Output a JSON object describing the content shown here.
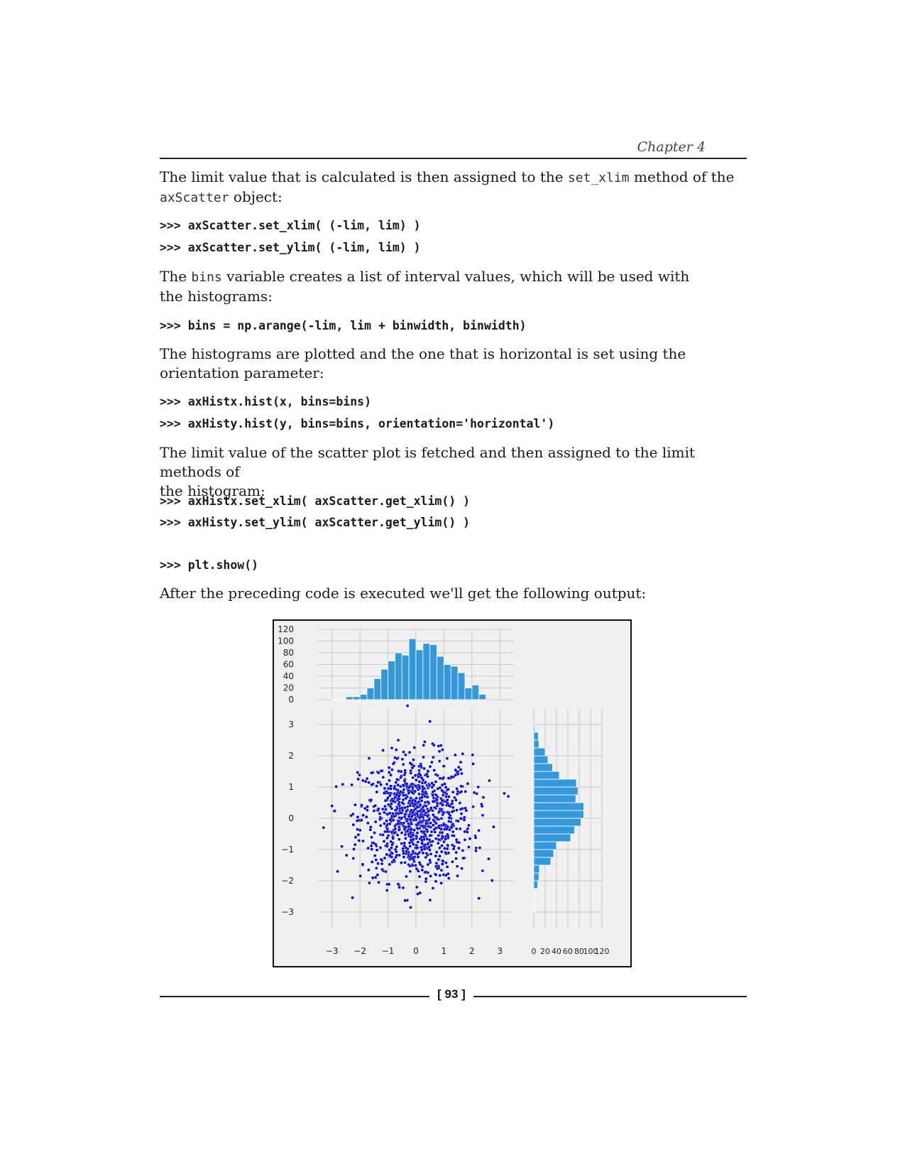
{
  "header": {
    "chapter": "Chapter 4"
  },
  "body": {
    "p1": {
      "a": "The limit value that is calculated is then assigned to the ",
      "code1": "set_xlim",
      "b": " method of the",
      "code2": "axScatter",
      "c": " object:"
    },
    "code1": [
      ">>> axScatter.set_xlim( (-lim, lim) )",
      ">>> axScatter.set_ylim( (-lim, lim) )"
    ],
    "p2": {
      "a": "The ",
      "code1": "bins",
      "b": " variable creates a list of interval values, which will be used with",
      "c": "the histograms:"
    },
    "code2": [
      ">>> bins = np.arange(-lim, lim + binwidth, binwidth)"
    ],
    "p3": {
      "a": "The histograms are plotted and the one that is horizontal is set using the",
      "b": "orientation parameter:"
    },
    "code3": [
      ">>> axHistx.hist(x, bins=bins)",
      ">>> axHisty.hist(y, bins=bins, orientation='horizontal')"
    ],
    "p4": {
      "a": "The limit value of the scatter plot is fetched and then assigned to the limit methods of",
      "b": "the histogram:"
    },
    "code4": [
      ">>> axHistx.set_xlim( axScatter.get_xlim() )",
      ">>> axHisty.set_ylim( axScatter.get_ylim() )"
    ],
    "code5": [
      ">>> plt.show()"
    ],
    "p5": "After the preceding code is executed we'll get the following output:"
  },
  "footer": {
    "page_number": "[ 93 ]"
  },
  "chart_data": [
    {
      "type": "bar",
      "title": "",
      "x_bin_edges": [
        -3.0,
        -2.75,
        -2.5,
        -2.25,
        -2.0,
        -1.75,
        -1.5,
        -1.25,
        -1.0,
        -0.75,
        -0.5,
        -0.25,
        0.0,
        0.25,
        0.5,
        0.75,
        1.0,
        1.25,
        1.5,
        1.75,
        2.0,
        2.25,
        2.5,
        2.75,
        3.0
      ],
      "values": [
        1,
        1,
        5,
        5,
        9,
        20,
        36,
        52,
        66,
        80,
        76,
        104,
        85,
        96,
        94,
        74,
        60,
        57,
        46,
        20,
        25,
        9,
        0,
        0
      ],
      "xlim": [
        -3.5,
        3.5
      ],
      "ylim": [
        0,
        120
      ],
      "yticks": [
        "0",
        "20",
        "40",
        "60",
        "80",
        "100",
        "120"
      ],
      "grid": true,
      "color": "#3498db"
    },
    {
      "type": "scatter",
      "title": "",
      "n_points": 1000,
      "distribution": "standard normal (x, y), mean 0, std 1",
      "outliers": [
        [
          -3.3,
          -0.3
        ],
        [
          3.3,
          0.7
        ],
        [
          -0.3,
          3.6
        ],
        [
          0.5,
          3.1
        ],
        [
          2.6,
          -1.3
        ],
        [
          -2.8,
          -1.7
        ]
      ],
      "xlim": [
        -3.5,
        3.5
      ],
      "ylim": [
        -3.5,
        3.5
      ],
      "xticks": [
        "−3",
        "−2",
        "−1",
        "0",
        "1",
        "2",
        "3"
      ],
      "yticks": [
        "3",
        "2",
        "1",
        "0",
        "−1",
        "−2",
        "−3"
      ],
      "grid": true,
      "color": "#0000cc"
    },
    {
      "type": "bar",
      "orientation": "horizontal",
      "title": "",
      "y_bin_edges": [
        -3.0,
        -2.75,
        -2.5,
        -2.25,
        -2.0,
        -1.75,
        -1.5,
        -1.25,
        -1.0,
        -0.75,
        -0.5,
        -0.25,
        0.0,
        0.25,
        0.5,
        0.75,
        1.0,
        1.25,
        1.5,
        1.75,
        2.0,
        2.25,
        2.5,
        2.75,
        3.0
      ],
      "values": [
        1,
        1,
        1,
        7,
        9,
        10,
        30,
        35,
        40,
        65,
        72,
        83,
        88,
        88,
        74,
        78,
        75,
        45,
        33,
        25,
        20,
        9,
        8,
        2
      ],
      "xlim": [
        0,
        120
      ],
      "xticks": [
        "0",
        "20",
        "40",
        "60",
        "80",
        "100",
        "120"
      ],
      "grid": true,
      "color": "#3498db"
    }
  ]
}
